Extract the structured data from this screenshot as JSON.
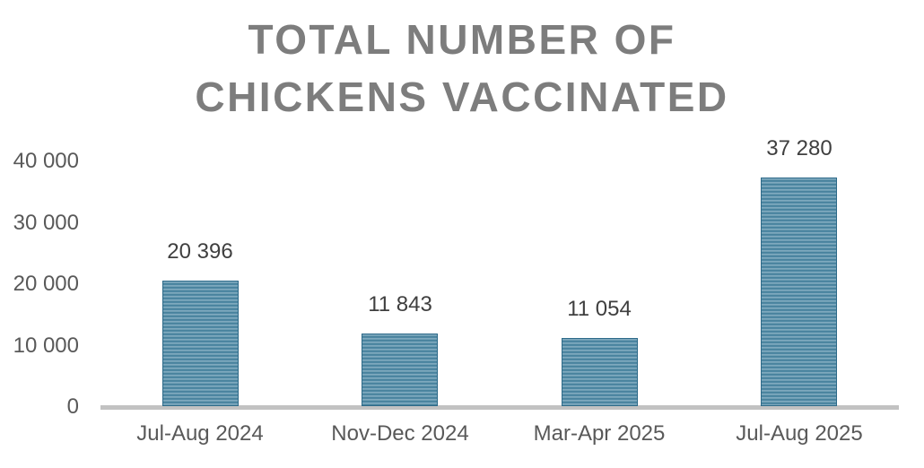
{
  "chart_data": {
    "type": "bar",
    "title": "TOTAL NUMBER OF CHICKENS VACCINATED",
    "title_lines": [
      "TOTAL NUMBER OF",
      "CHICKENS VACCINATED"
    ],
    "categories": [
      "Jul-Aug 2024",
      "Nov-Dec 2024",
      "Mar-Apr 2025",
      "Jul-Aug 2025"
    ],
    "values": [
      20396,
      11843,
      11054,
      37280
    ],
    "data_labels": [
      "20 396",
      "11 843",
      "11 054",
      "37 280"
    ],
    "xlabel": "",
    "ylabel": "",
    "ylim": [
      0,
      40000
    ],
    "y_ticks": [
      0,
      10000,
      20000,
      30000,
      40000
    ],
    "y_tick_labels": [
      "0",
      "10 000",
      "20 000",
      "30 000",
      "40 000"
    ],
    "grid": false,
    "legend": false,
    "colors": {
      "bar_stripe_light": "#7fa9be",
      "bar_stripe_mid": "#5c92ab",
      "bar_stripe_dark": "#35718f",
      "bar_border": "#2d6a89",
      "axis_line": "#c2c2c2",
      "title_text": "#7d7d7d",
      "tick_text": "#595959",
      "data_label_text": "#3f3f3f",
      "background": "#ffffff"
    }
  }
}
